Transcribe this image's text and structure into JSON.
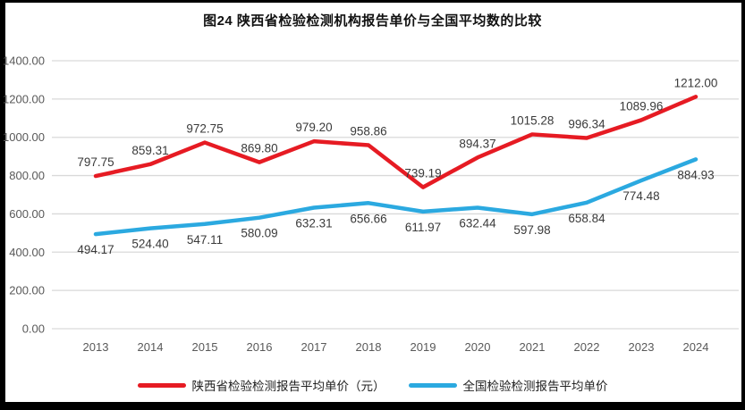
{
  "title": "图24 陕西省检验检测机构报告单价与全国平均数的比较",
  "chart_data": {
    "type": "line",
    "categories": [
      "2013",
      "2014",
      "2015",
      "2016",
      "2017",
      "2018",
      "2019",
      "2020",
      "2021",
      "2022",
      "2023",
      "2024"
    ],
    "series": [
      {
        "name": "陕西省检验检测报告平均单价（元）",
        "color": "#E61B23",
        "label_position": "above",
        "values": [
          797.75,
          859.31,
          972.75,
          869.8,
          979.2,
          958.86,
          739.19,
          894.37,
          1015.28,
          996.34,
          1089.96,
          1212.0
        ]
      },
      {
        "name": "全国检验检测报告平均单价",
        "color": "#2BA9E0",
        "label_position": "below",
        "values": [
          494.17,
          524.4,
          547.11,
          580.09,
          632.31,
          656.66,
          611.97,
          632.44,
          597.98,
          658.84,
          774.48,
          884.93
        ]
      }
    ],
    "ylim": [
      0,
      1400
    ],
    "ytick_step": 200,
    "ytick_decimals": 2,
    "grid": true,
    "grid_color": "#D9D9D9",
    "legend_position": "bottom"
  }
}
